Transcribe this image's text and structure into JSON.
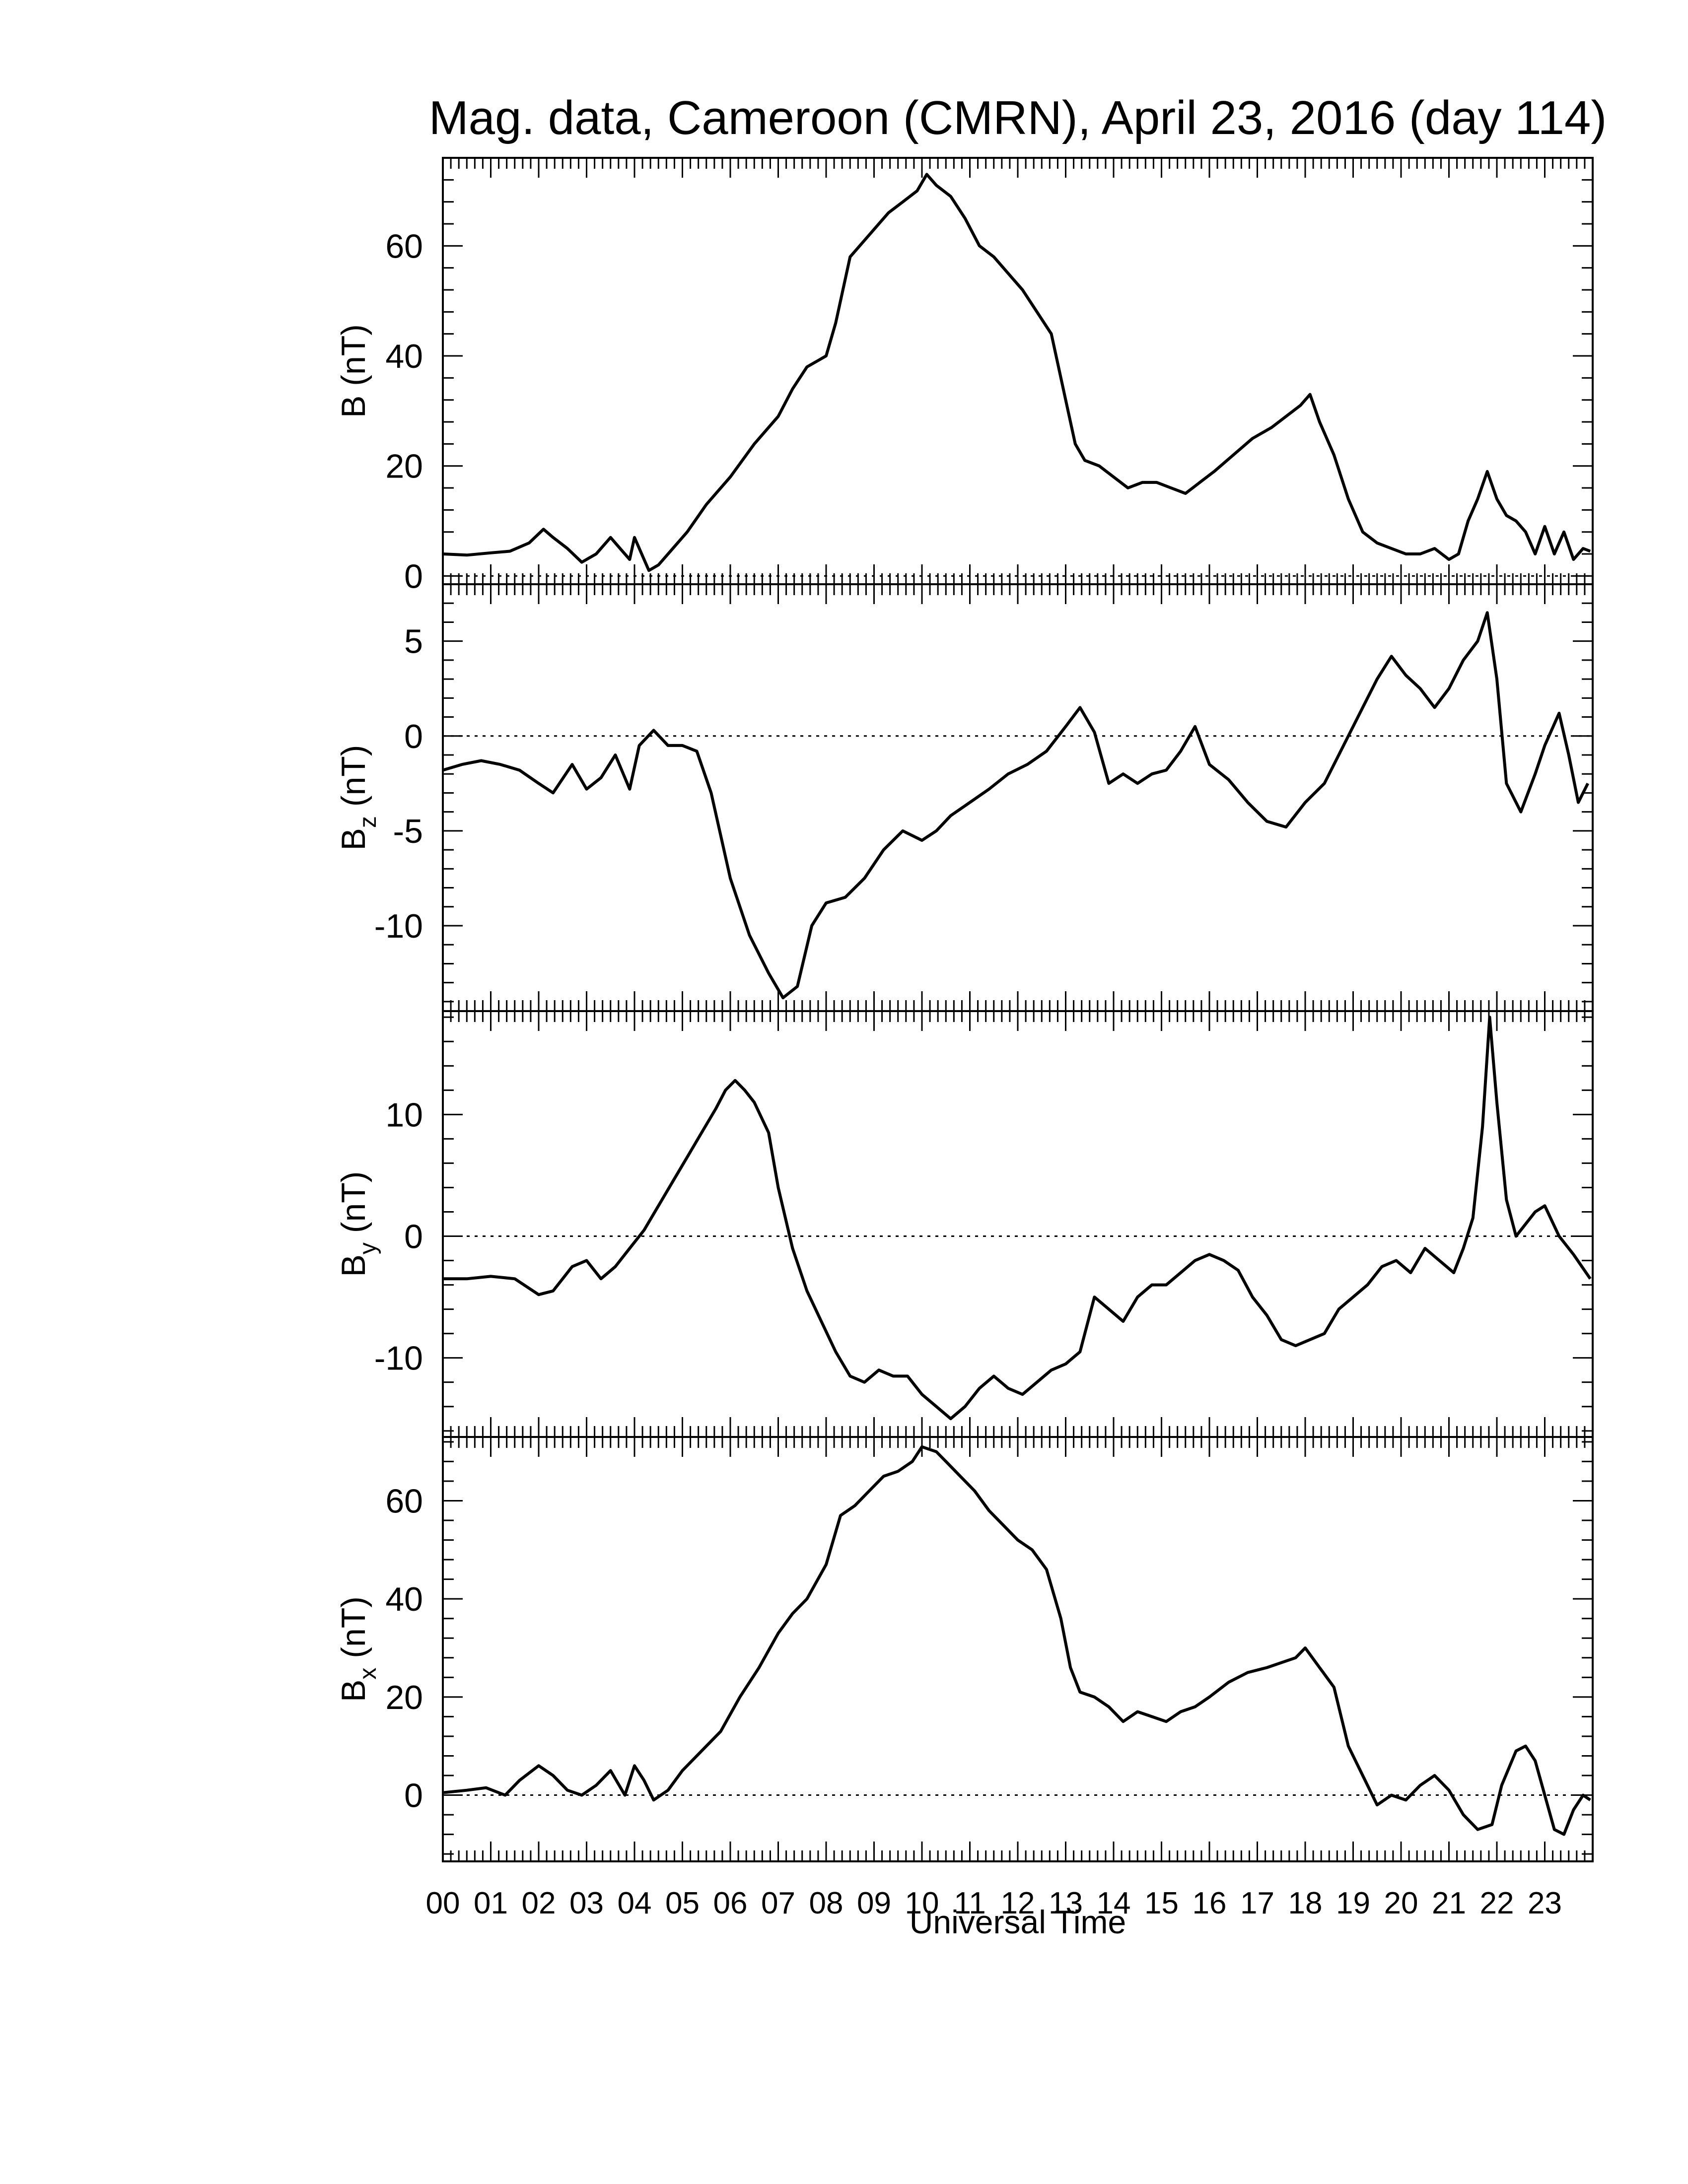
{
  "chart_data": {
    "type": "line",
    "title": "Mag. data, Cameroon (CMRN), April 23, 2016 (day 114)",
    "xlabel": "Universal Time",
    "xlim": [
      0,
      24
    ],
    "x_tick_labels": [
      "00",
      "01",
      "02",
      "03",
      "04",
      "05",
      "06",
      "07",
      "08",
      "09",
      "10",
      "11",
      "12",
      "13",
      "14",
      "15",
      "16",
      "17",
      "18",
      "19",
      "20",
      "21",
      "22",
      "23"
    ],
    "grid": false,
    "panels": [
      {
        "name": "B",
        "ylabel": "B (nT)",
        "ylabel_main": "B",
        "ylabel_sub": "",
        "ylabel_unit": " (nT)",
        "ylim": [
          -1.5,
          76
        ],
        "yticks": [
          0,
          20,
          40,
          60
        ],
        "zero_line": true,
        "series": [
          {
            "x": [
              0,
              0.5,
              1,
              1.4,
              1.8,
              2.1,
              2.3,
              2.6,
              2.9,
              3.2,
              3.5,
              3.7,
              3.9,
              4.0,
              4.2,
              4.3,
              4.5,
              4.8,
              5.1,
              5.5,
              6.0,
              6.5,
              7.0,
              7.3,
              7.6,
              8.0,
              8.2,
              8.5,
              8.8,
              9.0,
              9.3,
              9.6,
              9.9,
              10.1,
              10.3,
              10.6,
              10.9,
              11.2,
              11.5,
              11.8,
              12.1,
              12.4,
              12.7,
              13.0,
              13.2,
              13.4,
              13.7,
              14.0,
              14.3,
              14.6,
              14.9,
              15.2,
              15.5,
              15.8,
              16.1,
              16.5,
              16.9,
              17.3,
              17.6,
              17.9,
              18.1,
              18.3,
              18.6,
              18.9,
              19.2,
              19.5,
              19.8,
              20.1,
              20.4,
              20.7,
              21.0,
              21.2,
              21.4,
              21.6,
              21.8,
              22.0,
              22.2,
              22.4,
              22.6,
              22.8,
              23.0,
              23.2,
              23.4,
              23.6,
              23.8,
              23.95
            ],
            "y": [
              4,
              3.8,
              4.2,
              4.5,
              6,
              8.5,
              7,
              5,
              2.5,
              4,
              7,
              5,
              3,
              7,
              3,
              1,
              2,
              5,
              8,
              13,
              18,
              24,
              29,
              34,
              38,
              40,
              46,
              58,
              61,
              63,
              66,
              68,
              70,
              73,
              71,
              69,
              65,
              60,
              58,
              55,
              52,
              48,
              44,
              32,
              24,
              21,
              20,
              18,
              16,
              17,
              17,
              16,
              15,
              17,
              19,
              22,
              25,
              27,
              29,
              31,
              33,
              28,
              22,
              14,
              8,
              6,
              5,
              4,
              4,
              5,
              3,
              4,
              10,
              14,
              19,
              14,
              11,
              10,
              8,
              4,
              9,
              4,
              8,
              3,
              5,
              4.5
            ]
          }
        ]
      },
      {
        "name": "Bz",
        "ylabel": "Bz (nT)",
        "ylabel_main": "B",
        "ylabel_sub": "z",
        "ylabel_unit": " (nT)",
        "ylim": [
          -14.5,
          8
        ],
        "yticks": [
          -10,
          -5,
          0,
          5
        ],
        "zero_line": true,
        "series": [
          {
            "x": [
              0,
              0.4,
              0.8,
              1.2,
              1.6,
              2.0,
              2.3,
              2.7,
              3.0,
              3.3,
              3.6,
              3.9,
              4.1,
              4.4,
              4.7,
              5.0,
              5.3,
              5.6,
              6.0,
              6.4,
              6.8,
              7.1,
              7.4,
              7.7,
              8.0,
              8.4,
              8.8,
              9.2,
              9.6,
              10.0,
              10.3,
              10.6,
              11.0,
              11.4,
              11.8,
              12.2,
              12.6,
              13.0,
              13.3,
              13.6,
              13.9,
              14.2,
              14.5,
              14.8,
              15.1,
              15.4,
              15.7,
              16.0,
              16.4,
              16.8,
              17.2,
              17.6,
              18.0,
              18.4,
              18.8,
              19.2,
              19.5,
              19.8,
              20.1,
              20.4,
              20.7,
              21.0,
              21.3,
              21.6,
              21.8,
              22.0,
              22.2,
              22.5,
              22.8,
              23.0,
              23.3,
              23.5,
              23.7,
              23.9
            ],
            "y": [
              -1.8,
              -1.5,
              -1.3,
              -1.5,
              -1.8,
              -2.5,
              -3.0,
              -1.5,
              -2.8,
              -2.2,
              -1.0,
              -2.8,
              -0.5,
              0.3,
              -0.5,
              -0.5,
              -0.8,
              -3.0,
              -7.5,
              -10.5,
              -12.5,
              -13.8,
              -13.2,
              -10.0,
              -8.8,
              -8.5,
              -7.5,
              -6.0,
              -5.0,
              -5.5,
              -5.0,
              -4.2,
              -3.5,
              -2.8,
              -2.0,
              -1.5,
              -0.8,
              0.5,
              1.5,
              0.2,
              -2.5,
              -2.0,
              -2.5,
              -2.0,
              -1.8,
              -0.8,
              0.5,
              -1.5,
              -2.3,
              -3.5,
              -4.5,
              -4.8,
              -3.5,
              -2.5,
              -0.5,
              1.5,
              3.0,
              4.2,
              3.2,
              2.5,
              1.5,
              2.5,
              4.0,
              5.0,
              6.5,
              3.0,
              -2.5,
              -4.0,
              -2.0,
              -0.5,
              1.2,
              -1.0,
              -3.5,
              -2.5
            ]
          }
        ]
      },
      {
        "name": "By",
        "ylabel": "By (nT)",
        "ylabel_main": "B",
        "ylabel_sub": "y",
        "ylabel_unit": " (nT)",
        "ylim": [
          -16.5,
          18.5
        ],
        "yticks": [
          -10,
          0,
          10
        ],
        "zero_line": true,
        "series": [
          {
            "x": [
              0,
              0.5,
              1.0,
              1.5,
              2.0,
              2.3,
              2.7,
              3.0,
              3.3,
              3.6,
              3.9,
              4.2,
              4.5,
              4.8,
              5.1,
              5.4,
              5.7,
              5.9,
              6.1,
              6.3,
              6.5,
              6.8,
              7.0,
              7.3,
              7.6,
              7.9,
              8.2,
              8.5,
              8.8,
              9.1,
              9.4,
              9.7,
              10.0,
              10.3,
              10.6,
              10.9,
              11.2,
              11.5,
              11.8,
              12.1,
              12.4,
              12.7,
              13.0,
              13.3,
              13.6,
              13.9,
              14.2,
              14.5,
              14.8,
              15.1,
              15.4,
              15.7,
              16.0,
              16.3,
              16.6,
              16.9,
              17.2,
              17.5,
              17.8,
              18.1,
              18.4,
              18.7,
              19.0,
              19.3,
              19.6,
              19.9,
              20.2,
              20.5,
              20.8,
              21.1,
              21.3,
              21.5,
              21.7,
              21.85,
              22.0,
              22.2,
              22.4,
              22.6,
              22.8,
              23.0,
              23.3,
              23.6,
              23.95
            ],
            "y": [
              -3.5,
              -3.5,
              -3.3,
              -3.5,
              -4.8,
              -4.5,
              -2.5,
              -2.0,
              -3.5,
              -2.5,
              -1.0,
              0.5,
              2.5,
              4.5,
              6.5,
              8.5,
              10.5,
              12.0,
              12.8,
              12.0,
              11.0,
              8.5,
              4.0,
              -1.0,
              -4.5,
              -7.0,
              -9.5,
              -11.5,
              -12.0,
              -11.0,
              -11.5,
              -11.5,
              -13.0,
              -14.0,
              -15.0,
              -14.0,
              -12.5,
              -11.5,
              -12.5,
              -13.0,
              -12.0,
              -11.0,
              -10.5,
              -9.5,
              -5.0,
              -6.0,
              -7.0,
              -5.0,
              -4.0,
              -4.0,
              -3.0,
              -2.0,
              -1.5,
              -2.0,
              -2.8,
              -5.0,
              -6.5,
              -8.5,
              -9.0,
              -8.5,
              -8.0,
              -6.0,
              -5.0,
              -4.0,
              -2.5,
              -2.0,
              -3.0,
              -1.0,
              -2.0,
              -3.0,
              -1.0,
              1.5,
              9.0,
              18.0,
              11.0,
              3.0,
              0.0,
              1.0,
              2.0,
              2.5,
              0.0,
              -1.5,
              -3.5
            ]
          }
        ]
      },
      {
        "name": "Bx",
        "ylabel": "Bx (nT)",
        "ylabel_main": "B",
        "ylabel_sub": "x",
        "ylabel_unit": " (nT)",
        "ylim": [
          -13.5,
          73
        ],
        "yticks": [
          0,
          20,
          40,
          60
        ],
        "zero_line": true,
        "series": [
          {
            "x": [
              0,
              0.5,
              0.9,
              1.3,
              1.6,
              2.0,
              2.3,
              2.6,
              2.9,
              3.2,
              3.5,
              3.8,
              4.0,
              4.2,
              4.4,
              4.7,
              5.0,
              5.4,
              5.8,
              6.2,
              6.6,
              7.0,
              7.3,
              7.6,
              8.0,
              8.3,
              8.6,
              8.9,
              9.2,
              9.5,
              9.8,
              10.0,
              10.3,
              10.5,
              10.8,
              11.1,
              11.4,
              11.7,
              12.0,
              12.3,
              12.6,
              12.9,
              13.1,
              13.3,
              13.6,
              13.9,
              14.2,
              14.5,
              14.8,
              15.1,
              15.4,
              15.7,
              16.0,
              16.4,
              16.8,
              17.2,
              17.5,
              17.8,
              18.0,
              18.3,
              18.6,
              18.9,
              19.2,
              19.5,
              19.8,
              20.1,
              20.4,
              20.7,
              21.0,
              21.3,
              21.6,
              21.9,
              22.1,
              22.4,
              22.6,
              22.8,
              23.0,
              23.2,
              23.4,
              23.6,
              23.8,
              23.95
            ],
            "y": [
              0.5,
              1,
              1.5,
              0,
              3,
              6,
              4,
              1,
              0,
              2,
              5,
              0,
              6,
              3,
              -1,
              1,
              5,
              9,
              13,
              20,
              26,
              33,
              37,
              40,
              47,
              57,
              59,
              62,
              65,
              66,
              68,
              71,
              70,
              68,
              65,
              62,
              58,
              55,
              52,
              50,
              46,
              36,
              26,
              21,
              20,
              18,
              15,
              17,
              16,
              15,
              17,
              18,
              20,
              23,
              25,
              26,
              27,
              28,
              30,
              26,
              22,
              10,
              4,
              -2,
              0,
              -1,
              2,
              4,
              1,
              -4,
              -7,
              -6,
              2,
              9,
              10,
              7,
              0,
              -7,
              -8,
              -3,
              0,
              -1
            ]
          }
        ]
      }
    ]
  }
}
